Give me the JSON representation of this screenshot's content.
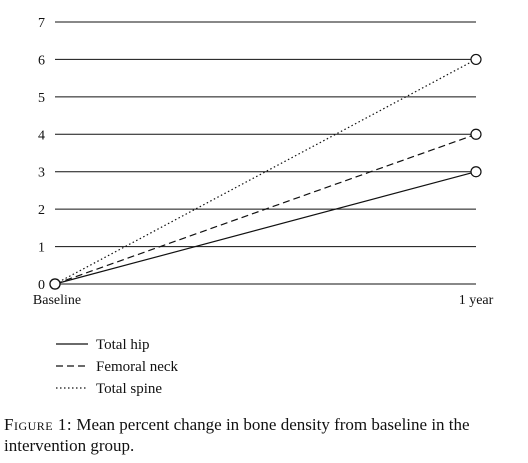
{
  "chart_data": {
    "type": "line",
    "categories": [
      "Baseline",
      "1 year"
    ],
    "yticks": [
      0,
      1,
      2,
      3,
      4,
      5,
      6,
      7
    ],
    "ylim": [
      0,
      7
    ],
    "grid": true,
    "legend_position": "bottom-left",
    "series": [
      {
        "name": "Total hip",
        "values": [
          0,
          3
        ],
        "style": "solid"
      },
      {
        "name": "Femoral neck",
        "values": [
          0,
          4
        ],
        "style": "dashed"
      },
      {
        "name": "Total spine",
        "values": [
          0,
          6
        ],
        "style": "dotted"
      }
    ],
    "colors": {
      "line": "#111111",
      "grid": "#111111"
    }
  },
  "caption": {
    "lead": "Figure 1:",
    "text": "Mean percent change in bone density from baseline in the intervention group."
  }
}
